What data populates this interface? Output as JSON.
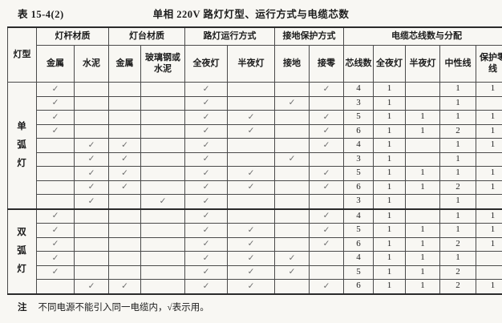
{
  "page": {
    "table_no": "表 15-4(2)",
    "title": "单相 220V 路灯灯型、运行方式与电缆芯数",
    "note_label": "注",
    "note_text": "不同电源不能引入同一电缆内，√表示用。",
    "check_symbol": "✓"
  },
  "colors": {
    "paper": "#f8f7f3",
    "ink": "#1c1c1c",
    "rule": "#2a2a2a",
    "line": "#4a4a4a",
    "check": "#6b6b6b"
  },
  "table": {
    "header": {
      "lamp_type": "灯型",
      "groups": [
        {
          "label": "灯杆材质",
          "cols": [
            "金属",
            "水泥"
          ]
        },
        {
          "label": "灯台材质",
          "cols": [
            "金属",
            "玻璃钢或水泥"
          ]
        },
        {
          "label": "路灯运行方式",
          "cols": [
            "全夜灯",
            "半夜灯"
          ]
        },
        {
          "label": "接地保护方式",
          "cols": [
            "接地",
            "接零"
          ]
        },
        {
          "label": "电缆芯线数与分配",
          "cols": [
            "芯线数",
            "全夜灯",
            "半夜灯",
            "中性线",
            "保护零线"
          ]
        }
      ]
    },
    "sections": [
      {
        "lamp_type": "单弧灯",
        "rows": [
          [
            "✓",
            "",
            "",
            "",
            "✓",
            "",
            "",
            "✓",
            "4",
            "1",
            "",
            "1",
            "1"
          ],
          [
            "✓",
            "",
            "",
            "",
            "✓",
            "",
            "✓",
            "",
            "3",
            "1",
            "",
            "1",
            ""
          ],
          [
            "✓",
            "",
            "",
            "",
            "✓",
            "✓",
            "",
            "✓",
            "5",
            "1",
            "1",
            "1",
            "1"
          ],
          [
            "✓",
            "",
            "",
            "",
            "✓",
            "✓",
            "",
            "✓",
            "6",
            "1",
            "1",
            "2",
            "1"
          ],
          [
            "",
            "✓",
            "✓",
            "",
            "✓",
            "",
            "",
            "✓",
            "4",
            "1",
            "",
            "1",
            "1"
          ],
          [
            "",
            "✓",
            "✓",
            "",
            "✓",
            "",
            "✓",
            "",
            "3",
            "1",
            "",
            "1",
            ""
          ],
          [
            "",
            "✓",
            "✓",
            "",
            "✓",
            "✓",
            "",
            "✓",
            "5",
            "1",
            "1",
            "1",
            "1"
          ],
          [
            "",
            "✓",
            "✓",
            "",
            "✓",
            "✓",
            "",
            "✓",
            "6",
            "1",
            "1",
            "2",
            "1"
          ],
          [
            "",
            "✓",
            "",
            "✓",
            "✓",
            "",
            "",
            "",
            "3",
            "1",
            "",
            "1",
            ""
          ]
        ]
      },
      {
        "lamp_type": "双弧灯",
        "rows": [
          [
            "✓",
            "",
            "",
            "",
            "✓",
            "",
            "",
            "✓",
            "4",
            "1",
            "",
            "1",
            "1"
          ],
          [
            "✓",
            "",
            "",
            "",
            "✓",
            "✓",
            "",
            "✓",
            "5",
            "1",
            "1",
            "1",
            "1"
          ],
          [
            "✓",
            "",
            "",
            "",
            "✓",
            "✓",
            "",
            "✓",
            "6",
            "1",
            "1",
            "2",
            "1"
          ],
          [
            "✓",
            "",
            "",
            "",
            "✓",
            "✓",
            "✓",
            "",
            "4",
            "1",
            "1",
            "1",
            ""
          ],
          [
            "✓",
            "",
            "",
            "",
            "✓",
            "✓",
            "✓",
            "",
            "5",
            "1",
            "1",
            "2",
            ""
          ],
          [
            "",
            "✓",
            "✓",
            "",
            "✓",
            "✓",
            "",
            "✓",
            "6",
            "1",
            "1",
            "2",
            "1"
          ]
        ]
      }
    ]
  }
}
